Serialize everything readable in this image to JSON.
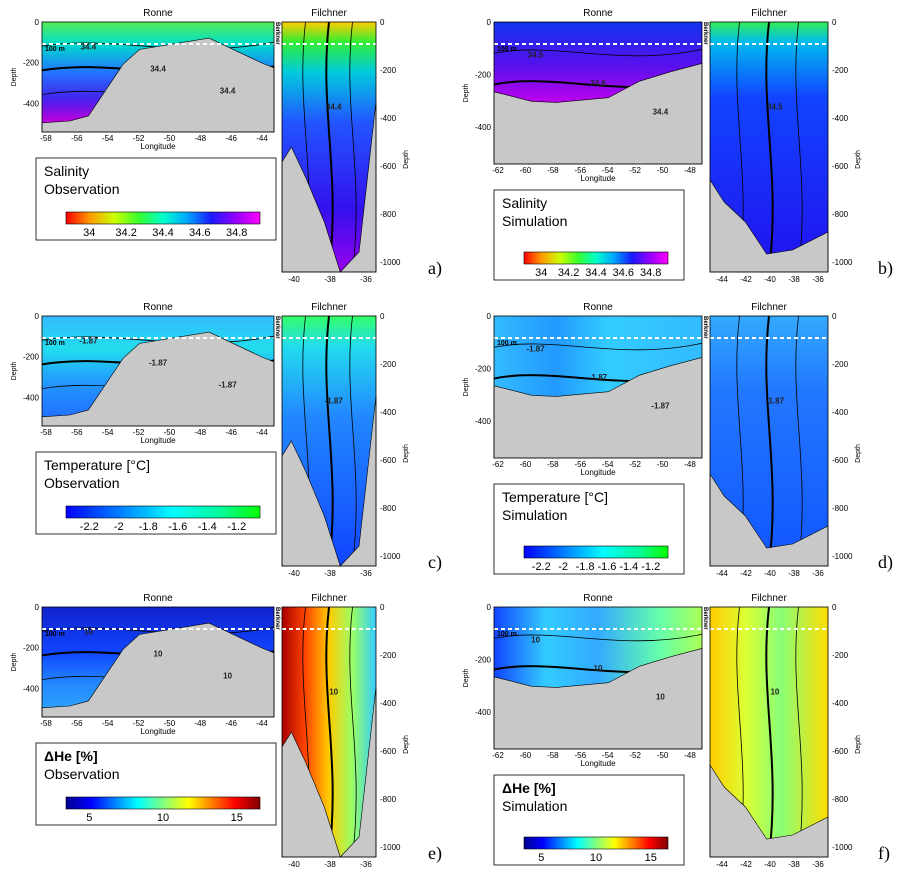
{
  "common": {
    "ronne_title": "Ronne",
    "filchner_title": "Filchner",
    "berkner_label": "Berkner",
    "depth_label": "Depth",
    "longitude_label": "Longitude",
    "line_100m": "100 m"
  },
  "panels": [
    {
      "letter": "a)",
      "legend_line1": "Salinity",
      "legend_line2": "Observation",
      "colorbar_ticks": [
        "34",
        "34.2",
        "34.4",
        "34.6",
        "34.8"
      ],
      "colormap": "salinity",
      "contour_labels": [
        "34.4",
        "34.4",
        "34.4"
      ],
      "ronne_x_ticks": [
        "-58",
        "-56",
        "-54",
        "-52",
        "-50",
        "-48",
        "-46",
        "-44"
      ],
      "ronne_y_ticks": [
        "0",
        "-200",
        "-400"
      ],
      "filchner_x_ticks": [
        "-40",
        "-38",
        "-36"
      ],
      "filchner_y_ticks": [
        "0",
        "-200",
        "-400",
        "-600",
        "-800",
        "-1000"
      ]
    },
    {
      "letter": "b)",
      "legend_line1": "Salinity",
      "legend_line2": "Simulation",
      "colorbar_ticks": [
        "34",
        "34.2",
        "34.4",
        "34.6",
        "34.8"
      ],
      "colormap": "salinity",
      "contour_labels": [
        "34.5",
        "34.6",
        "34.4"
      ],
      "ronne_x_ticks": [
        "-62",
        "-60",
        "-58",
        "-56",
        "-54",
        "-52",
        "-50",
        "-48"
      ],
      "ronne_y_ticks": [
        "0",
        "-200",
        "-400"
      ],
      "filchner_x_ticks": [
        "-44",
        "-42",
        "-40",
        "-38",
        "-36"
      ],
      "filchner_y_ticks": [
        "0",
        "-200",
        "-400",
        "-600",
        "-800",
        "-1000"
      ]
    },
    {
      "letter": "c)",
      "legend_line1": "Temperature [°C]",
      "legend_line2": "Observation",
      "colorbar_ticks": [
        "-2.2",
        "-2",
        "-1.8",
        "-1.6",
        "-1.4",
        "-1.2"
      ],
      "colormap": "temperature",
      "contour_labels": [
        "-1.87",
        "-1.87",
        "-1.87"
      ],
      "ronne_x_ticks": [
        "-58",
        "-56",
        "-54",
        "-52",
        "-50",
        "-48",
        "-46",
        "-44"
      ],
      "ronne_y_ticks": [
        "0",
        "-200",
        "-400"
      ],
      "filchner_x_ticks": [
        "-40",
        "-38",
        "-36"
      ],
      "filchner_y_ticks": [
        "0",
        "-200",
        "-400",
        "-600",
        "-800",
        "-1000"
      ]
    },
    {
      "letter": "d)",
      "legend_line1": "Temperature [°C]",
      "legend_line2": "Simulation",
      "colorbar_ticks": [
        "-2.2",
        "-2",
        "-1.8",
        "-1.6",
        "-1.4",
        "-1.2"
      ],
      "colormap": "temperature",
      "contour_labels": [
        "-1.87",
        "-1.87",
        "-1.87"
      ],
      "ronne_x_ticks": [
        "-62",
        "-60",
        "-58",
        "-56",
        "-54",
        "-52",
        "-50",
        "-48"
      ],
      "ronne_y_ticks": [
        "0",
        "-200",
        "-400"
      ],
      "filchner_x_ticks": [
        "-44",
        "-42",
        "-40",
        "-38",
        "-36"
      ],
      "filchner_y_ticks": [
        "0",
        "-200",
        "-400",
        "-600",
        "-800",
        "-1000"
      ]
    },
    {
      "letter": "e)",
      "legend_line1": "ΔHe [%]",
      "legend_line2": "Observation",
      "colorbar_ticks": [
        "5",
        "10",
        "15"
      ],
      "colormap": "jet",
      "contour_labels": [
        "10",
        "10",
        "10"
      ],
      "ronne_x_ticks": [
        "-58",
        "-56",
        "-54",
        "-52",
        "-50",
        "-48",
        "-46",
        "-44"
      ],
      "ronne_y_ticks": [
        "0",
        "-200",
        "-400"
      ],
      "filchner_x_ticks": [
        "-40",
        "-38",
        "-36"
      ],
      "filchner_y_ticks": [
        "0",
        "-200",
        "-400",
        "-600",
        "-800",
        "-1000"
      ]
    },
    {
      "letter": "f)",
      "legend_line1": "ΔHe [%]",
      "legend_line2": "Simulation",
      "colorbar_ticks": [
        "5",
        "10",
        "15"
      ],
      "colormap": "jet",
      "contour_labels": [
        "10",
        "10",
        "10"
      ],
      "ronne_x_ticks": [
        "-62",
        "-60",
        "-58",
        "-56",
        "-54",
        "-52",
        "-50",
        "-48"
      ],
      "ronne_y_ticks": [
        "0",
        "-200",
        "-400"
      ],
      "filchner_x_ticks": [
        "-44",
        "-42",
        "-40",
        "-38",
        "-36"
      ],
      "filchner_y_ticks": [
        "0",
        "-200",
        "-400",
        "-600",
        "-800",
        "-1000"
      ]
    }
  ],
  "chart_data": [
    {
      "type": "heatmap",
      "quantity": "Salinity",
      "source": "Observation",
      "sections": [
        "Ronne",
        "Filchner"
      ],
      "ronne_xlim": [
        -58,
        -43
      ],
      "ronne_ylim": [
        -540,
        0
      ],
      "filchner_xlim": [
        -42,
        -35
      ],
      "filchner_ylim": [
        -1100,
        0
      ],
      "colorbar_range": [
        33.8,
        34.85
      ],
      "contour_value_labels": [
        34.4
      ]
    },
    {
      "type": "heatmap",
      "quantity": "Salinity",
      "source": "Simulation",
      "sections": [
        "Ronne",
        "Filchner"
      ],
      "ronne_xlim": [
        -62,
        -47.5
      ],
      "ronne_ylim": [
        -540,
        0
      ],
      "filchner_xlim": [
        -44,
        -36
      ],
      "filchner_ylim": [
        -1000,
        0
      ],
      "colorbar_range": [
        33.8,
        34.85
      ],
      "contour_value_labels": [
        34.4,
        34.5,
        34.6
      ]
    },
    {
      "type": "heatmap",
      "quantity": "Temperature [°C]",
      "source": "Observation",
      "sections": [
        "Ronne",
        "Filchner"
      ],
      "ronne_xlim": [
        -58,
        -43
      ],
      "ronne_ylim": [
        -540,
        0
      ],
      "filchner_xlim": [
        -42,
        -35
      ],
      "filchner_ylim": [
        -1100,
        0
      ],
      "colorbar_range": [
        -2.25,
        -1.05
      ],
      "contour_value_labels": [
        -1.87
      ]
    },
    {
      "type": "heatmap",
      "quantity": "Temperature [°C]",
      "source": "Simulation",
      "sections": [
        "Ronne",
        "Filchner"
      ],
      "ronne_xlim": [
        -62,
        -47.5
      ],
      "ronne_ylim": [
        -540,
        0
      ],
      "filchner_xlim": [
        -44,
        -36
      ],
      "filchner_ylim": [
        -1000,
        0
      ],
      "colorbar_range": [
        -2.25,
        -1.05
      ],
      "contour_value_labels": [
        -1.87
      ]
    },
    {
      "type": "heatmap",
      "quantity": "ΔHe [%]",
      "source": "Observation",
      "sections": [
        "Ronne",
        "Filchner"
      ],
      "ronne_xlim": [
        -58,
        -43
      ],
      "ronne_ylim": [
        -540,
        0
      ],
      "filchner_xlim": [
        -42,
        -35
      ],
      "filchner_ylim": [
        -1100,
        0
      ],
      "colorbar_range": [
        1,
        17
      ],
      "contour_value_labels": [
        10
      ]
    },
    {
      "type": "heatmap",
      "quantity": "ΔHe [%]",
      "source": "Simulation",
      "sections": [
        "Ronne",
        "Filchner"
      ],
      "ronne_xlim": [
        -62,
        -47.5
      ],
      "ronne_ylim": [
        -540,
        0
      ],
      "filchner_xlim": [
        -44,
        -36
      ],
      "filchner_ylim": [
        -1000,
        0
      ],
      "colorbar_range": [
        1,
        17
      ],
      "contour_value_labels": [
        10
      ]
    }
  ]
}
